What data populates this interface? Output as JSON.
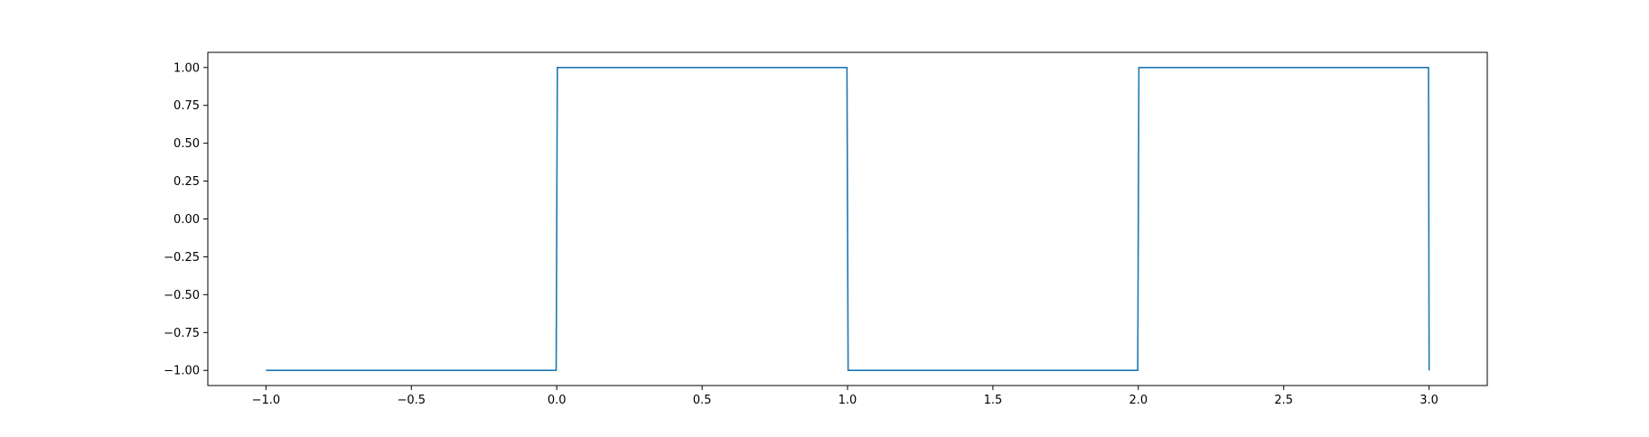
{
  "chart_data": {
    "type": "line",
    "title": "",
    "xlabel": "",
    "ylabel": "",
    "xlim": [
      -1.2,
      3.2
    ],
    "ylim": [
      -1.1,
      1.1
    ],
    "x_ticks": [
      -1.0,
      -0.5,
      0.0,
      0.5,
      1.0,
      1.5,
      2.0,
      2.5,
      3.0
    ],
    "x_tick_labels": [
      "−1.0",
      "−0.5",
      "0.0",
      "0.5",
      "1.0",
      "1.5",
      "2.0",
      "2.5",
      "3.0"
    ],
    "y_ticks": [
      -1.0,
      -0.75,
      -0.5,
      -0.25,
      0.0,
      0.25,
      0.5,
      0.75,
      1.0
    ],
    "y_tick_labels": [
      "−1.00",
      "−0.75",
      "−0.50",
      "−0.25",
      "0.00",
      "0.25",
      "0.50",
      "0.75",
      "1.00"
    ],
    "grid": false,
    "legend": "none",
    "series": [
      {
        "color": "#1f77b4",
        "x": [
          -1.0,
          -0.002,
          0.002,
          0.998,
          1.002,
          1.998,
          2.002,
          2.998,
          3.0
        ],
        "y": [
          -1,
          -1,
          1,
          1,
          -1,
          -1,
          1,
          1,
          -1
        ]
      }
    ]
  }
}
